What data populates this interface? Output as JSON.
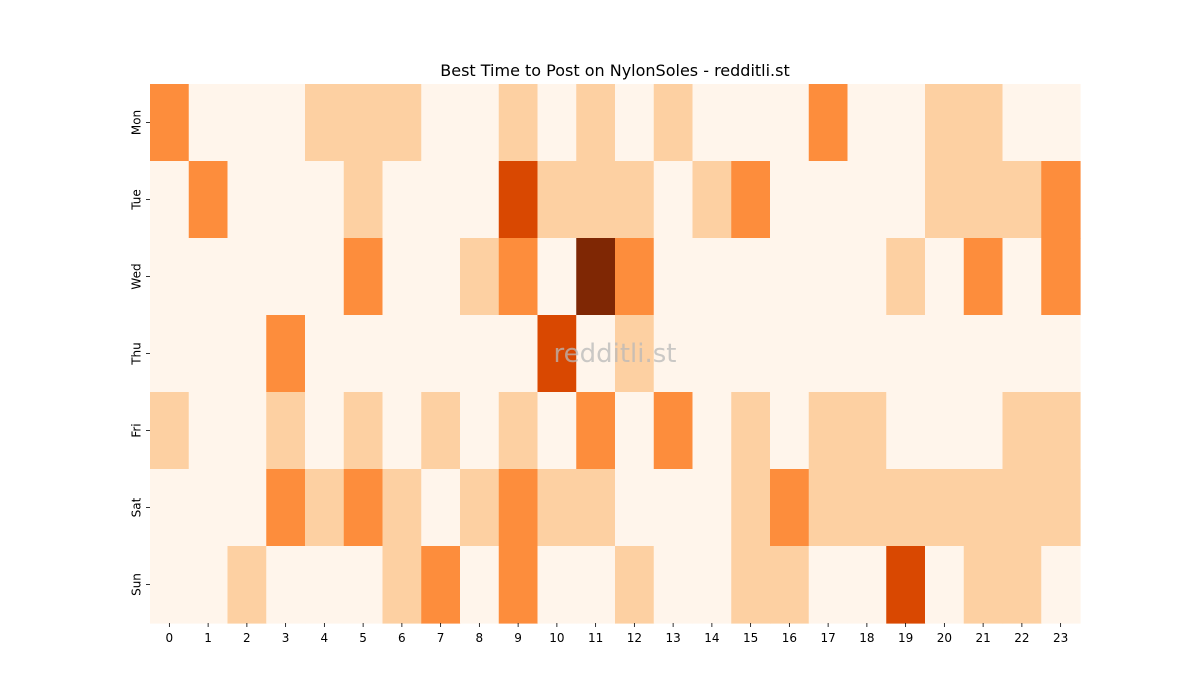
{
  "chart_data": {
    "type": "heatmap",
    "title": "Best Time to Post on NylonSoles - redditli.st",
    "watermark": "redditli.st",
    "x_categories": [
      "0",
      "1",
      "2",
      "3",
      "4",
      "5",
      "6",
      "7",
      "8",
      "9",
      "10",
      "11",
      "12",
      "13",
      "14",
      "15",
      "16",
      "17",
      "18",
      "19",
      "20",
      "21",
      "22",
      "23"
    ],
    "y_categories": [
      "Mon",
      "Tue",
      "Wed",
      "Thu",
      "Fri",
      "Sat",
      "Sun"
    ],
    "xlabel": "",
    "ylabel": "",
    "values": [
      [
        2,
        0,
        0,
        0,
        1,
        1,
        1,
        0,
        0,
        1,
        0,
        1,
        0,
        1,
        0,
        0,
        0,
        2,
        0,
        0,
        1,
        1,
        0,
        0
      ],
      [
        0,
        2,
        0,
        0,
        0,
        1,
        0,
        0,
        0,
        3,
        1,
        1,
        1,
        0,
        1,
        2,
        0,
        0,
        0,
        0,
        1,
        1,
        1,
        2
      ],
      [
        0,
        0,
        0,
        0,
        0,
        2,
        0,
        0,
        1,
        2,
        0,
        4,
        2,
        0,
        0,
        0,
        0,
        0,
        0,
        1,
        0,
        2,
        0,
        2
      ],
      [
        0,
        0,
        0,
        2,
        0,
        0,
        0,
        0,
        0,
        0,
        3,
        0,
        1,
        0,
        0,
        0,
        0,
        0,
        0,
        0,
        0,
        0,
        0,
        0
      ],
      [
        1,
        0,
        0,
        1,
        0,
        1,
        0,
        1,
        0,
        1,
        0,
        2,
        0,
        2,
        0,
        1,
        0,
        1,
        1,
        0,
        0,
        0,
        1,
        1
      ],
      [
        0,
        0,
        0,
        2,
        1,
        2,
        1,
        0,
        1,
        2,
        1,
        1,
        0,
        0,
        0,
        1,
        2,
        1,
        1,
        1,
        1,
        1,
        1,
        1
      ],
      [
        0,
        0,
        1,
        0,
        0,
        0,
        1,
        2,
        0,
        2,
        0,
        0,
        1,
        0,
        0,
        1,
        1,
        0,
        0,
        3,
        0,
        1,
        1,
        0
      ]
    ],
    "color_scale": [
      "#fff5eb",
      "#fdd0a2",
      "#fd8d3c",
      "#d94801",
      "#7f2704"
    ],
    "colorbar": false
  }
}
